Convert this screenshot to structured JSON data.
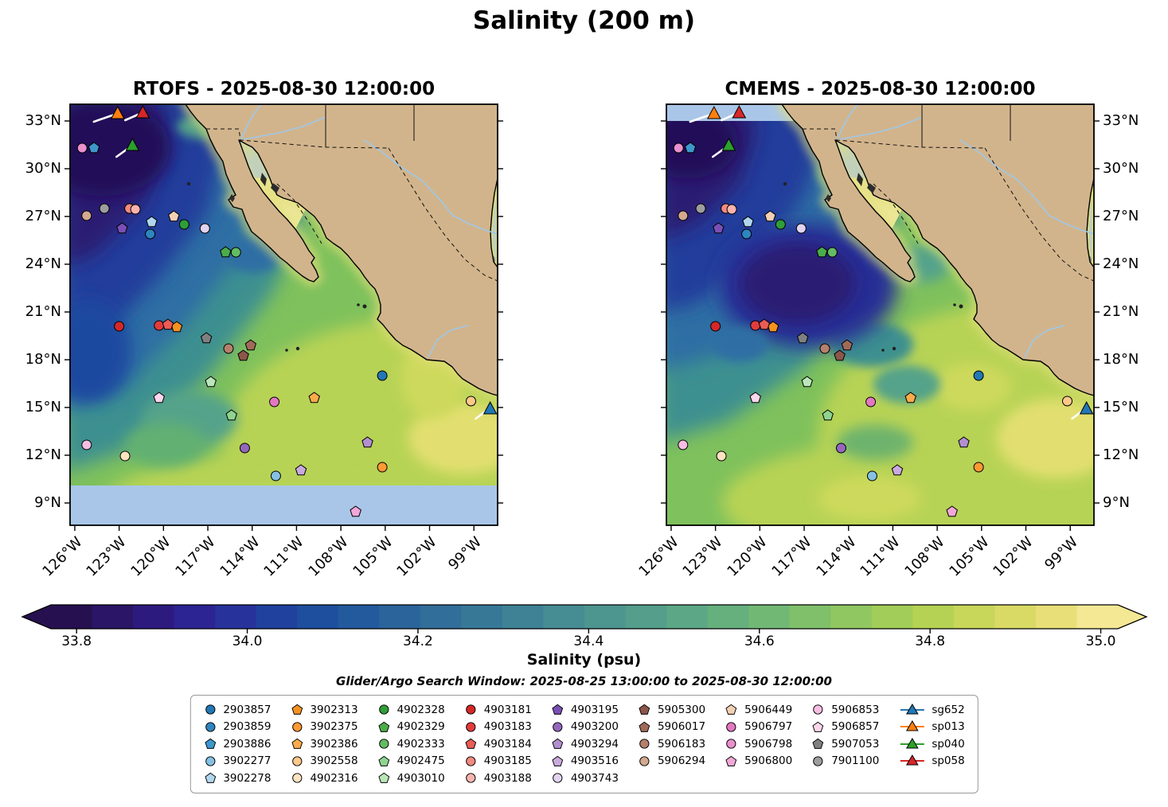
{
  "title": "Salinity (200 m)",
  "panels": [
    {
      "id": "rtofs",
      "title": "RTOFS - 2025-08-30 12:00:00"
    },
    {
      "id": "cmems",
      "title": "CMEMS - 2025-08-30 12:00:00"
    }
  ],
  "subtitle": "Glider/Argo Search Window: 2025-08-25 13:00:00 to 2025-08-30 12:00:00",
  "axes": {
    "lat_ticks": [
      "33°N",
      "30°N",
      "27°N",
      "24°N",
      "21°N",
      "18°N",
      "15°N",
      "12°N",
      "9°N"
    ],
    "lat_values": [
      33,
      30,
      27,
      24,
      21,
      18,
      15,
      12,
      9
    ],
    "lon_ticks": [
      "126°W",
      "123°W",
      "120°W",
      "117°W",
      "114°W",
      "111°W",
      "108°W",
      "105°W",
      "102°W",
      "99°W"
    ],
    "lon_values": [
      126,
      123,
      120,
      117,
      114,
      111,
      108,
      105,
      102,
      99
    ]
  },
  "colorbar": {
    "label": "Salinity (psu)",
    "tick_labels": [
      "33.8",
      "34.0",
      "34.2",
      "34.4",
      "34.6",
      "34.8",
      "35.0"
    ],
    "tick_values": [
      33.8,
      34.0,
      34.2,
      34.4,
      34.6,
      34.8,
      35.0
    ],
    "range": [
      33.77,
      35.02
    ],
    "colors": [
      "#26104f",
      "#2a1566",
      "#2d1a7e",
      "#2c2492",
      "#27339b",
      "#20429e",
      "#1e4f9e",
      "#235a9d",
      "#2a649b",
      "#316e99",
      "#387897",
      "#3f8295",
      "#468c93",
      "#4d958f",
      "#549e8b",
      "#5ca786",
      "#66b07e",
      "#72b875",
      "#80c06b",
      "#90c761",
      "#a2cd58",
      "#b5d254",
      "#c8d65a",
      "#d9da66",
      "#e8df78",
      "#f4e894"
    ]
  },
  "chart_data": {
    "type": "map-contour",
    "variable": "salinity at 200 m (psu)",
    "lon_range_degW": [
      126.3,
      97.4
    ],
    "lat_range_degN": [
      7.6,
      34.05
    ],
    "markers": [
      {
        "id": "2903857",
        "shape": "circle",
        "color": "#2277b4",
        "lon": 105.2,
        "lat": 17.0
      },
      {
        "id": "2903859",
        "shape": "circle",
        "color": "#2e86c0",
        "lon": 120.9,
        "lat": 25.9
      },
      {
        "id": "2903886",
        "shape": "pentagon",
        "color": "#3d97cc",
        "lon": 124.7,
        "lat": 31.3
      },
      {
        "id": "3902277",
        "shape": "circle",
        "color": "#85c1e4",
        "lon": 112.4,
        "lat": 10.7
      },
      {
        "id": "3902278",
        "shape": "pentagon",
        "color": "#b0d6ee",
        "lon": 120.8,
        "lat": 26.65
      },
      {
        "id": "3902313",
        "shape": "pentagon",
        "color": "#f59120",
        "lon": 119.1,
        "lat": 20.05
      },
      {
        "id": "3902375",
        "shape": "circle",
        "color": "#ff9933",
        "lon": 105.2,
        "lat": 11.25
      },
      {
        "id": "3902386",
        "shape": "pentagon",
        "color": "#fbab4a",
        "lon": 109.8,
        "lat": 15.6
      },
      {
        "id": "3902558",
        "shape": "circle",
        "color": "#fdc88a",
        "lon": 99.2,
        "lat": 15.4
      },
      {
        "id": "4902316",
        "shape": "circle",
        "color": "#fde3c0",
        "lon": 122.6,
        "lat": 11.95
      },
      {
        "id": "4902328",
        "shape": "circle",
        "color": "#2f9e37",
        "lon": 118.6,
        "lat": 26.5
      },
      {
        "id": "4902329",
        "shape": "pentagon",
        "color": "#4aad4a",
        "lon": 115.8,
        "lat": 24.75
      },
      {
        "id": "4902333",
        "shape": "circle",
        "color": "#63bc63",
        "lon": 115.1,
        "lat": 24.75
      },
      {
        "id": "4902475",
        "shape": "pentagon",
        "color": "#8fd48f",
        "lon": 115.4,
        "lat": 14.5
      },
      {
        "id": "4903010",
        "shape": "pentagon",
        "color": "#bae6ba",
        "lon": 116.8,
        "lat": 16.6
      },
      {
        "id": "4903181",
        "shape": "circle",
        "color": "#d62728",
        "lon": 123.0,
        "lat": 20.1
      },
      {
        "id": "4903183",
        "shape": "circle",
        "color": "#e23b3b",
        "lon": 120.3,
        "lat": 20.15
      },
      {
        "id": "4903184",
        "shape": "pentagon",
        "color": "#ea5c55",
        "lon": 119.7,
        "lat": 20.2
      },
      {
        "id": "4903185",
        "shape": "circle",
        "color": "#f28a80",
        "lon": 122.3,
        "lat": 27.5
      },
      {
        "id": "4903188",
        "shape": "circle",
        "color": "#f8b3ae",
        "lon": 121.9,
        "lat": 27.45
      },
      {
        "id": "4903195",
        "shape": "pentagon",
        "color": "#7a4fb5",
        "lon": 122.8,
        "lat": 26.25
      },
      {
        "id": "4903200",
        "shape": "circle",
        "color": "#9467bd",
        "lon": 114.5,
        "lat": 12.45
      },
      {
        "id": "4903294",
        "shape": "pentagon",
        "color": "#b28fd0",
        "lon": 106.2,
        "lat": 12.8
      },
      {
        "id": "4903516",
        "shape": "pentagon",
        "color": "#c9aade",
        "lon": 110.7,
        "lat": 11.05
      },
      {
        "id": "4903743",
        "shape": "circle",
        "color": "#e2d4f0",
        "lon": 117.2,
        "lat": 26.25
      },
      {
        "id": "5905300",
        "shape": "pentagon",
        "color": "#8c564b",
        "lon": 114.6,
        "lat": 18.25
      },
      {
        "id": "5906017",
        "shape": "pentagon",
        "color": "#a06a58",
        "lon": 114.1,
        "lat": 18.9
      },
      {
        "id": "5906183",
        "shape": "circle",
        "color": "#b5806b",
        "lon": 115.6,
        "lat": 18.7
      },
      {
        "id": "5906294",
        "shape": "circle",
        "color": "#d3a990",
        "lon": 125.2,
        "lat": 27.05
      },
      {
        "id": "5906449",
        "shape": "pentagon",
        "color": "#f2d0b4",
        "lon": 119.3,
        "lat": 27.0
      },
      {
        "id": "5906797",
        "shape": "circle",
        "color": "#e377c2",
        "lon": 112.5,
        "lat": 15.35
      },
      {
        "id": "5906798",
        "shape": "circle",
        "color": "#ea90cd",
        "lon": 125.5,
        "lat": 31.3
      },
      {
        "id": "5906800",
        "shape": "pentagon",
        "color": "#f2a7d8",
        "lon": 107.0,
        "lat": 8.45
      },
      {
        "id": "5906853",
        "shape": "circle",
        "color": "#f7bde2",
        "lon": 125.2,
        "lat": 12.65
      },
      {
        "id": "5906857",
        "shape": "pentagon",
        "color": "#fbd6ec",
        "lon": 120.3,
        "lat": 15.6
      },
      {
        "id": "5907053",
        "shape": "pentagon",
        "color": "#808080",
        "lon": 117.1,
        "lat": 19.35
      },
      {
        "id": "7901100",
        "shape": "circle",
        "color": "#9e9e9e",
        "lon": 124.0,
        "lat": 27.5
      }
    ],
    "gliders": [
      {
        "id": "sg652",
        "color": "#2277b4",
        "lon": 97.9,
        "lat": 14.9,
        "track": [
          [
            -18,
            12
          ],
          [
            -6,
            3
          ],
          [
            0,
            0
          ]
        ]
      },
      {
        "id": "sp013",
        "color": "#ff7f0e",
        "lon": 123.1,
        "lat": 33.45,
        "track": [
          [
            -30,
            10
          ],
          [
            -10,
            3
          ],
          [
            0,
            0
          ]
        ]
      },
      {
        "id": "sp040",
        "color": "#2ca02c",
        "lon": 122.1,
        "lat": 31.45,
        "track": [
          [
            -20,
            14
          ],
          [
            -6,
            4
          ],
          [
            0,
            0
          ]
        ]
      },
      {
        "id": "sp058",
        "color": "#d62728",
        "lon": 121.4,
        "lat": 33.5,
        "track": [
          [
            -22,
            9
          ],
          [
            -6,
            2
          ],
          [
            0,
            0
          ]
        ]
      }
    ]
  },
  "legend": {
    "columns": [
      [
        {
          "id": "2903857",
          "shape": "circle",
          "color": "#2277b4"
        },
        {
          "id": "2903859",
          "shape": "circle",
          "color": "#2e86c0"
        },
        {
          "id": "2903886",
          "shape": "pentagon",
          "color": "#3d97cc"
        },
        {
          "id": "3902277",
          "shape": "circle",
          "color": "#85c1e4"
        },
        {
          "id": "3902278",
          "shape": "pentagon",
          "color": "#b0d6ee"
        }
      ],
      [
        {
          "id": "3902313",
          "shape": "pentagon",
          "color": "#f59120"
        },
        {
          "id": "3902375",
          "shape": "circle",
          "color": "#ff9933"
        },
        {
          "id": "3902386",
          "shape": "pentagon",
          "color": "#fbab4a"
        },
        {
          "id": "3902558",
          "shape": "circle",
          "color": "#fdc88a"
        },
        {
          "id": "4902316",
          "shape": "circle",
          "color": "#fde3c0"
        }
      ],
      [
        {
          "id": "4902328",
          "shape": "circle",
          "color": "#2f9e37"
        },
        {
          "id": "4902329",
          "shape": "pentagon",
          "color": "#4aad4a"
        },
        {
          "id": "4902333",
          "shape": "circle",
          "color": "#63bc63"
        },
        {
          "id": "4902475",
          "shape": "pentagon",
          "color": "#8fd48f"
        },
        {
          "id": "4903010",
          "shape": "pentagon",
          "color": "#bae6ba"
        }
      ],
      [
        {
          "id": "4903181",
          "shape": "circle",
          "color": "#d62728"
        },
        {
          "id": "4903183",
          "shape": "circle",
          "color": "#e23b3b"
        },
        {
          "id": "4903184",
          "shape": "pentagon",
          "color": "#ea5c55"
        },
        {
          "id": "4903185",
          "shape": "circle",
          "color": "#f28a80"
        },
        {
          "id": "4903188",
          "shape": "circle",
          "color": "#f8b3ae"
        }
      ],
      [
        {
          "id": "4903195",
          "shape": "pentagon",
          "color": "#7a4fb5"
        },
        {
          "id": "4903200",
          "shape": "circle",
          "color": "#9467bd"
        },
        {
          "id": "4903294",
          "shape": "pentagon",
          "color": "#b28fd0"
        },
        {
          "id": "4903516",
          "shape": "pentagon",
          "color": "#c9aade"
        },
        {
          "id": "4903743",
          "shape": "circle",
          "color": "#e2d4f0"
        }
      ],
      [
        {
          "id": "5905300",
          "shape": "pentagon",
          "color": "#8c564b"
        },
        {
          "id": "5906017",
          "shape": "pentagon",
          "color": "#a06a58"
        },
        {
          "id": "5906183",
          "shape": "circle",
          "color": "#b5806b"
        },
        {
          "id": "5906294",
          "shape": "circle",
          "color": "#d3a990"
        }
      ],
      [
        {
          "id": "5906449",
          "shape": "pentagon",
          "color": "#f2d0b4"
        },
        {
          "id": "5906797",
          "shape": "circle",
          "color": "#e377c2"
        },
        {
          "id": "5906798",
          "shape": "circle",
          "color": "#ea90cd"
        },
        {
          "id": "5906800",
          "shape": "pentagon",
          "color": "#f2a7d8"
        }
      ],
      [
        {
          "id": "5906853",
          "shape": "circle",
          "color": "#f7bde2"
        },
        {
          "id": "5906857",
          "shape": "pentagon",
          "color": "#fbd6ec"
        },
        {
          "id": "5907053",
          "shape": "pentagon",
          "color": "#808080"
        },
        {
          "id": "7901100",
          "shape": "circle",
          "color": "#9e9e9e"
        }
      ],
      [
        {
          "id": "sg652",
          "shape": "triangle-line",
          "color": "#2277b4"
        },
        {
          "id": "sp013",
          "shape": "triangle-line",
          "color": "#ff7f0e"
        },
        {
          "id": "sp040",
          "shape": "triangle-line",
          "color": "#2ca02c"
        },
        {
          "id": "sp058",
          "shape": "triangle-line",
          "color": "#d62728"
        }
      ]
    ]
  }
}
